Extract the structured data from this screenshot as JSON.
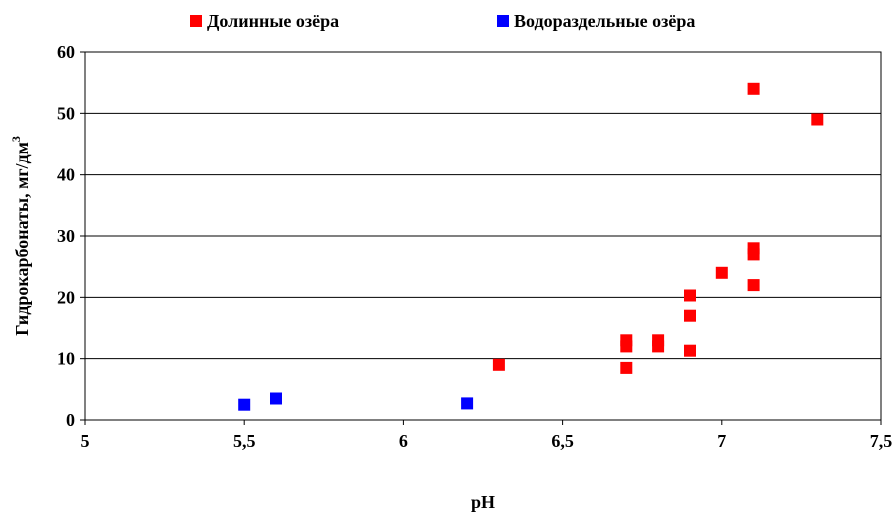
{
  "chart_data": {
    "type": "scatter",
    "xlabel": "pH",
    "ylabel": "Гидрокарбонаты, мг/дм",
    "ylabel_sup": "3",
    "xlim": [
      5,
      7.5
    ],
    "ylim": [
      0,
      60
    ],
    "x_ticks": [
      "5",
      "5,5",
      "6",
      "6,5",
      "7",
      "7,5"
    ],
    "y_ticks": [
      "0",
      "10",
      "20",
      "30",
      "40",
      "50",
      "60"
    ],
    "grid": "horizontal",
    "legend_position": "top",
    "series": [
      {
        "name": "Долинные озёра",
        "color": "#ff0000",
        "points": [
          {
            "x": 6.3,
            "y": 9
          },
          {
            "x": 6.7,
            "y": 8.5
          },
          {
            "x": 6.7,
            "y": 12
          },
          {
            "x": 6.7,
            "y": 13
          },
          {
            "x": 6.8,
            "y": 12
          },
          {
            "x": 6.8,
            "y": 13
          },
          {
            "x": 6.9,
            "y": 11.3
          },
          {
            "x": 6.9,
            "y": 17
          },
          {
            "x": 6.9,
            "y": 20.3
          },
          {
            "x": 7.0,
            "y": 24
          },
          {
            "x": 7.1,
            "y": 22
          },
          {
            "x": 7.1,
            "y": 27
          },
          {
            "x": 7.1,
            "y": 28
          },
          {
            "x": 7.1,
            "y": 54
          },
          {
            "x": 7.3,
            "y": 49
          }
        ]
      },
      {
        "name": "Водораздельные озёра",
        "color": "#0000ff",
        "points": [
          {
            "x": 5.5,
            "y": 2.5
          },
          {
            "x": 5.6,
            "y": 3.5
          },
          {
            "x": 6.2,
            "y": 2.7
          }
        ]
      }
    ]
  }
}
